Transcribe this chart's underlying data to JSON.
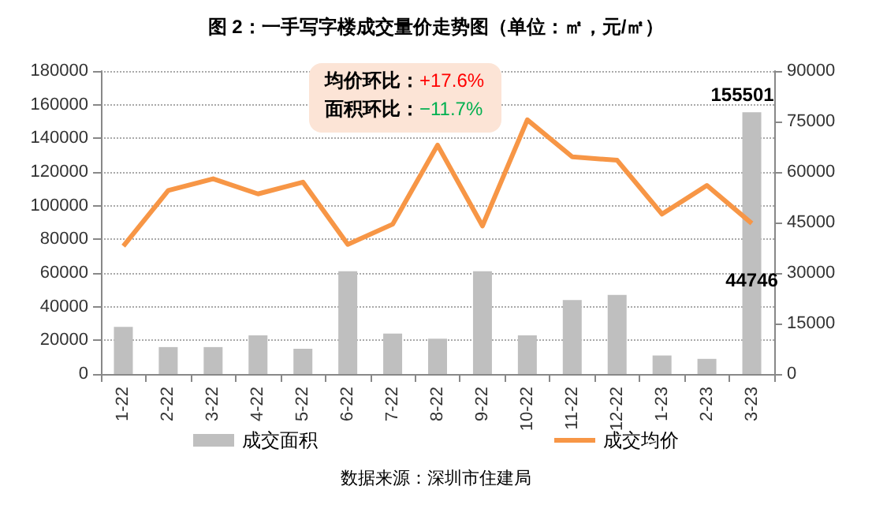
{
  "chart_data": {
    "type": "bar",
    "title": "图 2：一手写字楼成交量价走势图（单位：㎡，元/㎡）",
    "categories": [
      "1-22",
      "2-22",
      "3-22",
      "4-22",
      "5-22",
      "6-22",
      "7-22",
      "8-22",
      "9-22",
      "10-22",
      "11-22",
      "12-22",
      "1-23",
      "2-23",
      "3-23"
    ],
    "series": [
      {
        "name": "成交面积",
        "color": "#bfbfbf",
        "values": [
          28000,
          16000,
          16000,
          23000,
          15000,
          61000,
          24000,
          21000,
          61000,
          23000,
          44000,
          47000,
          11000,
          9000,
          155501
        ],
        "value_labels": [
          null,
          null,
          null,
          null,
          null,
          null,
          null,
          null,
          null,
          null,
          null,
          null,
          null,
          null,
          "155501"
        ]
      },
      {
        "name": "成交均价",
        "type": "line",
        "axis": "y2",
        "color": "#f79646",
        "values": [
          38000,
          54500,
          58000,
          53500,
          57000,
          38500,
          44500,
          68000,
          44000,
          75500,
          64500,
          63500,
          47500,
          56000,
          44746
        ],
        "value_labels": [
          null,
          null,
          null,
          null,
          null,
          null,
          null,
          null,
          null,
          null,
          null,
          null,
          null,
          null,
          "44746"
        ]
      }
    ],
    "ylim": [
      0,
      180000
    ],
    "yticks": [
      0,
      20000,
      40000,
      60000,
      80000,
      100000,
      120000,
      140000,
      160000,
      180000
    ],
    "y2lim": [
      0,
      90000
    ],
    "y2ticks": [
      0,
      15000,
      30000,
      45000,
      60000,
      75000,
      90000
    ],
    "grid": "y",
    "legend": "bottom",
    "marker": "none",
    "annotations": [
      "均价环比：+17.6%",
      "面积环比：−11.7%",
      "数据来源：深圳市住建局"
    ]
  }
}
